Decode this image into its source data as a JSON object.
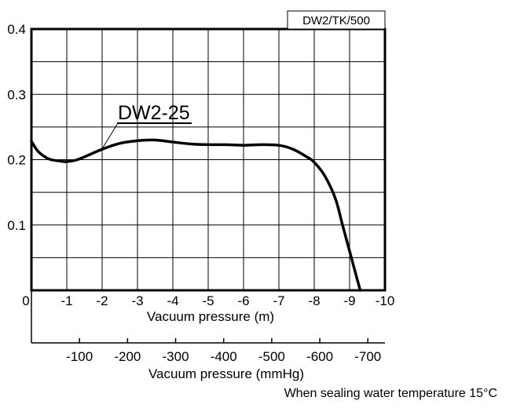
{
  "chart_data": {
    "type": "line",
    "badge": "DW2/TK/500",
    "xlabel": "Vacuum pressure (m)",
    "x2label": "Vacuum pressure (mmHg)",
    "ylabel": "",
    "xlim": [
      0,
      -10
    ],
    "ylim": [
      0,
      0.4
    ],
    "grid": true,
    "y_ticks": [
      {
        "value": 0.4,
        "label": "0.4"
      },
      {
        "value": 0.3,
        "label": "0.3"
      },
      {
        "value": 0.2,
        "label": "0.2"
      },
      {
        "value": 0.1,
        "label": "0.1"
      }
    ],
    "x_ticks": [
      {
        "value": 0,
        "label": "0"
      },
      {
        "value": -1,
        "label": "-1"
      },
      {
        "value": -2,
        "label": "-2"
      },
      {
        "value": -3,
        "label": "-3"
      },
      {
        "value": -4,
        "label": "-4"
      },
      {
        "value": -5,
        "label": "-5"
      },
      {
        "value": -6,
        "label": "-6"
      },
      {
        "value": -7,
        "label": "-7"
      },
      {
        "value": -8,
        "label": "-8"
      },
      {
        "value": -9,
        "label": "-9"
      },
      {
        "value": -10,
        "label": "-10"
      }
    ],
    "x2_ticks": [
      {
        "value": -100,
        "label": "-100"
      },
      {
        "value": -200,
        "label": "-200"
      },
      {
        "value": -300,
        "label": "-300"
      },
      {
        "value": -400,
        "label": "-400"
      },
      {
        "value": -500,
        "label": "-500"
      },
      {
        "value": -600,
        "label": "-600"
      },
      {
        "value": -700,
        "label": "-700"
      }
    ],
    "series": [
      {
        "name": "DW2-25",
        "x": [
          0,
          -0.2,
          -0.5,
          -0.8,
          -1.0,
          -1.3,
          -1.7,
          -2.0,
          -2.5,
          -3.0,
          -3.5,
          -4.0,
          -4.5,
          -5.0,
          -5.5,
          -6.0,
          -6.5,
          -7.0,
          -7.4,
          -7.8,
          -8.0,
          -8.3,
          -8.6,
          -8.8,
          -9.0,
          -9.2,
          -9.3
        ],
        "y": [
          0.228,
          0.212,
          0.201,
          0.198,
          0.197,
          0.2,
          0.209,
          0.216,
          0.225,
          0.229,
          0.23,
          0.227,
          0.224,
          0.223,
          0.223,
          0.222,
          0.223,
          0.222,
          0.216,
          0.204,
          0.196,
          0.175,
          0.14,
          0.1,
          0.06,
          0.02,
          0.0
        ]
      }
    ],
    "footnote": "When sealing water temperature 15°C"
  }
}
